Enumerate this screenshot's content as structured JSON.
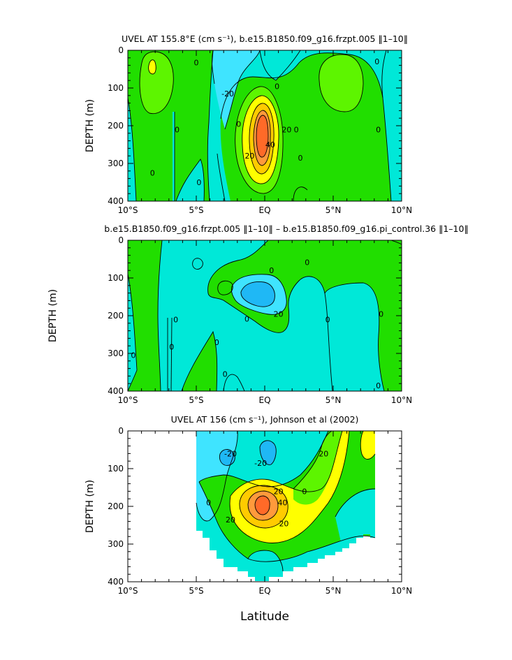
{
  "colors": {
    "c_neg3": "#1fb8f5",
    "c_neg2": "#3fe4ff",
    "c_neg1": "#00e8d8",
    "c_0": "#21de00",
    "c_1": "#5df500",
    "c_2": "#ffff00",
    "c_3": "#ffcb00",
    "c_4": "#ff9a3c",
    "c_5": "#ff6a28"
  },
  "chart_data": [
    {
      "type": "contour",
      "title": "UVEL AT 155.8°E (cm s⁻¹), b.e15.B1850.f09_g16.frzpt.005 ‖1–10‖",
      "xlabel": "",
      "ylabel": "DEPTH (m)",
      "xlim": [
        -10,
        10
      ],
      "ylim": [
        400,
        0
      ],
      "x_ticks": [
        -10,
        -5,
        0,
        5,
        10
      ],
      "x_tick_labels": [
        "10°S",
        "5°S",
        "EQ",
        "5°N",
        "10°N"
      ],
      "y_ticks": [
        0,
        100,
        200,
        300,
        400
      ],
      "y_tick_labels": [
        "0",
        "100",
        "200",
        "300",
        "400"
      ],
      "contour_labels": [
        {
          "text": "0",
          "x": -8.2,
          "y": 325
        },
        {
          "text": "0",
          "x": -6.4,
          "y": 210
        },
        {
          "text": "0",
          "x": -5.0,
          "y": 32
        },
        {
          "text": "0",
          "x": -4.8,
          "y": 350
        },
        {
          "text": "-20",
          "x": -2.7,
          "y": 115
        },
        {
          "text": "0",
          "x": -1.9,
          "y": 195
        },
        {
          "text": "20",
          "x": -1.1,
          "y": 280
        },
        {
          "text": "40",
          "x": 0.4,
          "y": 250
        },
        {
          "text": "20",
          "x": 1.6,
          "y": 210
        },
        {
          "text": "0",
          "x": 0.9,
          "y": 95
        },
        {
          "text": "0",
          "x": 2.6,
          "y": 285
        },
        {
          "text": "0",
          "x": 2.3,
          "y": 210
        },
        {
          "text": "0",
          "x": 8.3,
          "y": 210
        },
        {
          "text": "0",
          "x": 8.2,
          "y": 30
        }
      ]
    },
    {
      "type": "contour",
      "title": "b.e15.B1850.f09_g16.frzpt.005 ‖1–10‖ – b.e15.B1850.f09_g16.pi_control.36 ‖1–10‖",
      "xlabel": "",
      "ylabel": "DEPTH (m)",
      "xlim": [
        -10,
        10
      ],
      "ylim": [
        400,
        0
      ],
      "x_ticks": [
        -10,
        -5,
        0,
        5,
        10
      ],
      "x_tick_labels": [
        "10°S",
        "5°S",
        "EQ",
        "5°N",
        "10°N"
      ],
      "y_ticks": [
        0,
        100,
        200,
        300,
        400
      ],
      "y_tick_labels": [
        "0",
        "100",
        "200",
        "300",
        "400"
      ],
      "contour_labels": [
        {
          "text": "0",
          "x": -9.6,
          "y": 305
        },
        {
          "text": "0",
          "x": -6.5,
          "y": 210
        },
        {
          "text": "0",
          "x": -6.8,
          "y": 282
        },
        {
          "text": "0",
          "x": -3.5,
          "y": 270
        },
        {
          "text": "0",
          "x": -2.9,
          "y": 355
        },
        {
          "text": "0",
          "x": -1.3,
          "y": 208
        },
        {
          "text": "0",
          "x": 0.5,
          "y": 80
        },
        {
          "text": "20",
          "x": 1.0,
          "y": 195
        },
        {
          "text": "0",
          "x": 3.1,
          "y": 58
        },
        {
          "text": "0",
          "x": 4.6,
          "y": 210
        },
        {
          "text": "0",
          "x": 8.5,
          "y": 195
        },
        {
          "text": "0",
          "x": 8.3,
          "y": 385
        }
      ]
    },
    {
      "type": "contour",
      "title": "UVEL AT 156 (cm s⁻¹), Johnson et al (2002)",
      "xlabel": "Latitude",
      "ylabel": "DEPTH (m)",
      "xlim": [
        -10,
        10
      ],
      "ylim": [
        400,
        0
      ],
      "x_ticks": [
        -10,
        -5,
        0,
        5,
        10
      ],
      "x_tick_labels": [
        "10°S",
        "5°S",
        "EQ",
        "5°N",
        "10°N"
      ],
      "y_ticks": [
        0,
        100,
        200,
        300,
        400
      ],
      "y_tick_labels": [
        "0",
        "100",
        "200",
        "300",
        "400"
      ],
      "data_extent": {
        "x": [
          -5,
          8
        ],
        "max_depth": 330
      },
      "contour_labels": [
        {
          "text": "-20",
          "x": -2.5,
          "y": 60
        },
        {
          "text": "-20",
          "x": -0.3,
          "y": 85
        },
        {
          "text": "20",
          "x": 4.3,
          "y": 60
        },
        {
          "text": "0",
          "x": -4.1,
          "y": 190
        },
        {
          "text": "20",
          "x": -2.5,
          "y": 235
        },
        {
          "text": "20",
          "x": 1.0,
          "y": 160
        },
        {
          "text": "40",
          "x": 1.3,
          "y": 190
        },
        {
          "text": "20",
          "x": 1.4,
          "y": 245
        },
        {
          "text": "0",
          "x": 2.9,
          "y": 160
        }
      ]
    }
  ]
}
